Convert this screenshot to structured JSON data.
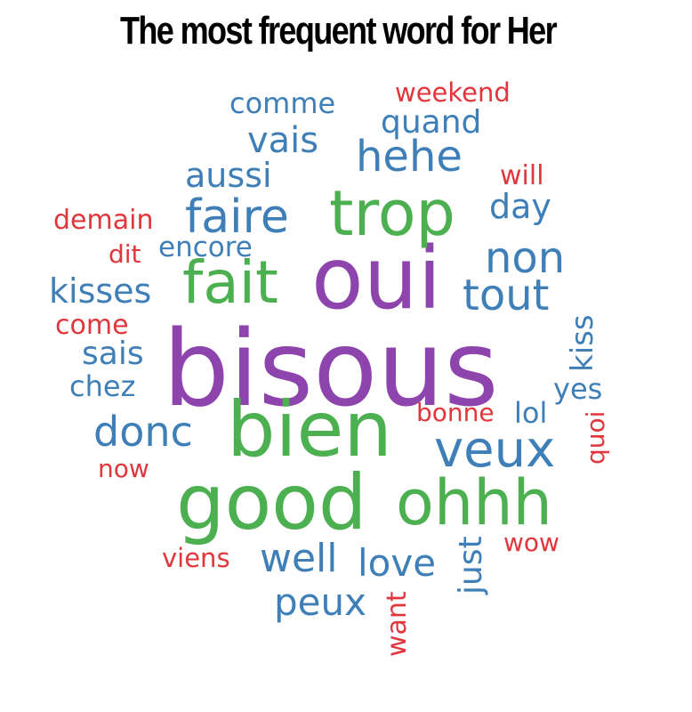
{
  "title": "The most frequent word for Her",
  "colors": {
    "purple": "#8e44ad",
    "green": "#4caf50",
    "blue": "#3f7fb8",
    "red": "#e0363c"
  },
  "words": {
    "bisous": "bisous",
    "oui": "oui",
    "bien": "bien",
    "good": "good",
    "ohhh": "ohhh",
    "fait": "fait",
    "trop": "trop",
    "faire": "faire",
    "veux": "veux",
    "hehe": "hehe",
    "non": "non",
    "tout": "tout",
    "donc": "donc",
    "well": "well",
    "love": "love",
    "peux": "peux",
    "vais": "vais",
    "aussi": "aussi",
    "quand": "quand",
    "comme": "comme",
    "kisses": "kisses",
    "encore": "encore",
    "day": "day",
    "sais": "sais",
    "chez": "chez",
    "yes": "yes",
    "lol": "lol",
    "kiss": "kiss",
    "just": "just",
    "weekend": "weekend",
    "will": "will",
    "demain": "demain",
    "dit": "dit",
    "come": "come",
    "bonne": "bonne",
    "now": "now",
    "viens": "viens",
    "wow": "wow",
    "quoi": "quoi",
    "want": "want"
  }
}
